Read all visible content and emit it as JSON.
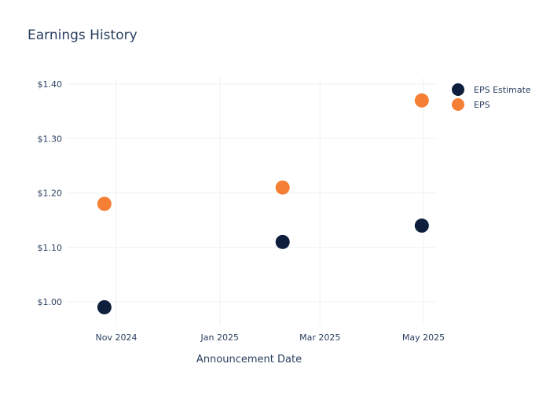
{
  "chart_data": {
    "type": "scatter",
    "title": "Earnings History",
    "xlabel": "Announcement Date",
    "ylabel": "",
    "x_ticks": [
      "Nov 2024",
      "Jan 2025",
      "Mar 2025",
      "May 2025"
    ],
    "y_ticks": [
      "$1.00",
      "$1.10",
      "$1.20",
      "$1.30",
      "$1.40"
    ],
    "series": [
      {
        "name": "EPS Estimate",
        "color": "#0d1f3c",
        "points": [
          {
            "x": "2024-10-25",
            "y": 0.99
          },
          {
            "x": "2025-02-07",
            "y": 1.11
          },
          {
            "x": "2025-04-30",
            "y": 1.14
          }
        ]
      },
      {
        "name": "EPS",
        "color": "#f47f35",
        "points": [
          {
            "x": "2024-10-25",
            "y": 1.18
          },
          {
            "x": "2025-02-07",
            "y": 1.21
          },
          {
            "x": "2025-04-30",
            "y": 1.37
          }
        ]
      }
    ],
    "grid": true,
    "legend": "top-right"
  }
}
